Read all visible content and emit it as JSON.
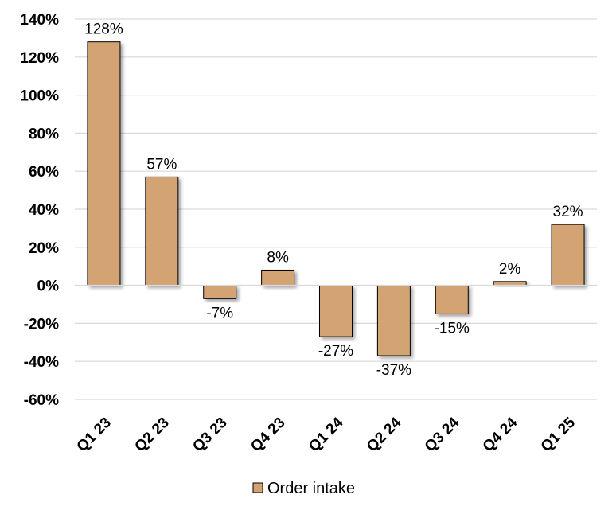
{
  "chart_data": {
    "type": "bar",
    "categories": [
      "Q1 23",
      "Q2 23",
      "Q3 23",
      "Q4 23",
      "Q1 24",
      "Q2 24",
      "Q3 24",
      "Q4 24",
      "Q1 25"
    ],
    "series": [
      {
        "name": "Order intake",
        "values": [
          128,
          57,
          -7,
          8,
          -27,
          -37,
          -15,
          2,
          32
        ],
        "data_labels": [
          "128%",
          "57%",
          "-7%",
          "8%",
          "-27%",
          "-37%",
          "-15%",
          "2%",
          "32%"
        ],
        "color": "#D4A373"
      }
    ],
    "ylim": [
      -60,
      140
    ],
    "y_ticks": [
      140,
      120,
      100,
      80,
      60,
      40,
      20,
      0,
      -20,
      -40,
      -60
    ],
    "y_tick_labels": [
      "140%",
      "120%",
      "100%",
      "80%",
      "60%",
      "40%",
      "20%",
      "0%",
      "-20%",
      "-40%",
      "-60%"
    ],
    "grid": true,
    "legend_position": "bottom-center",
    "title": "",
    "xlabel": "",
    "ylabel": "",
    "colors": {
      "bar_fill": "#D4A373",
      "bar_stroke": "#000000",
      "grid": "#D9D9D9"
    }
  }
}
